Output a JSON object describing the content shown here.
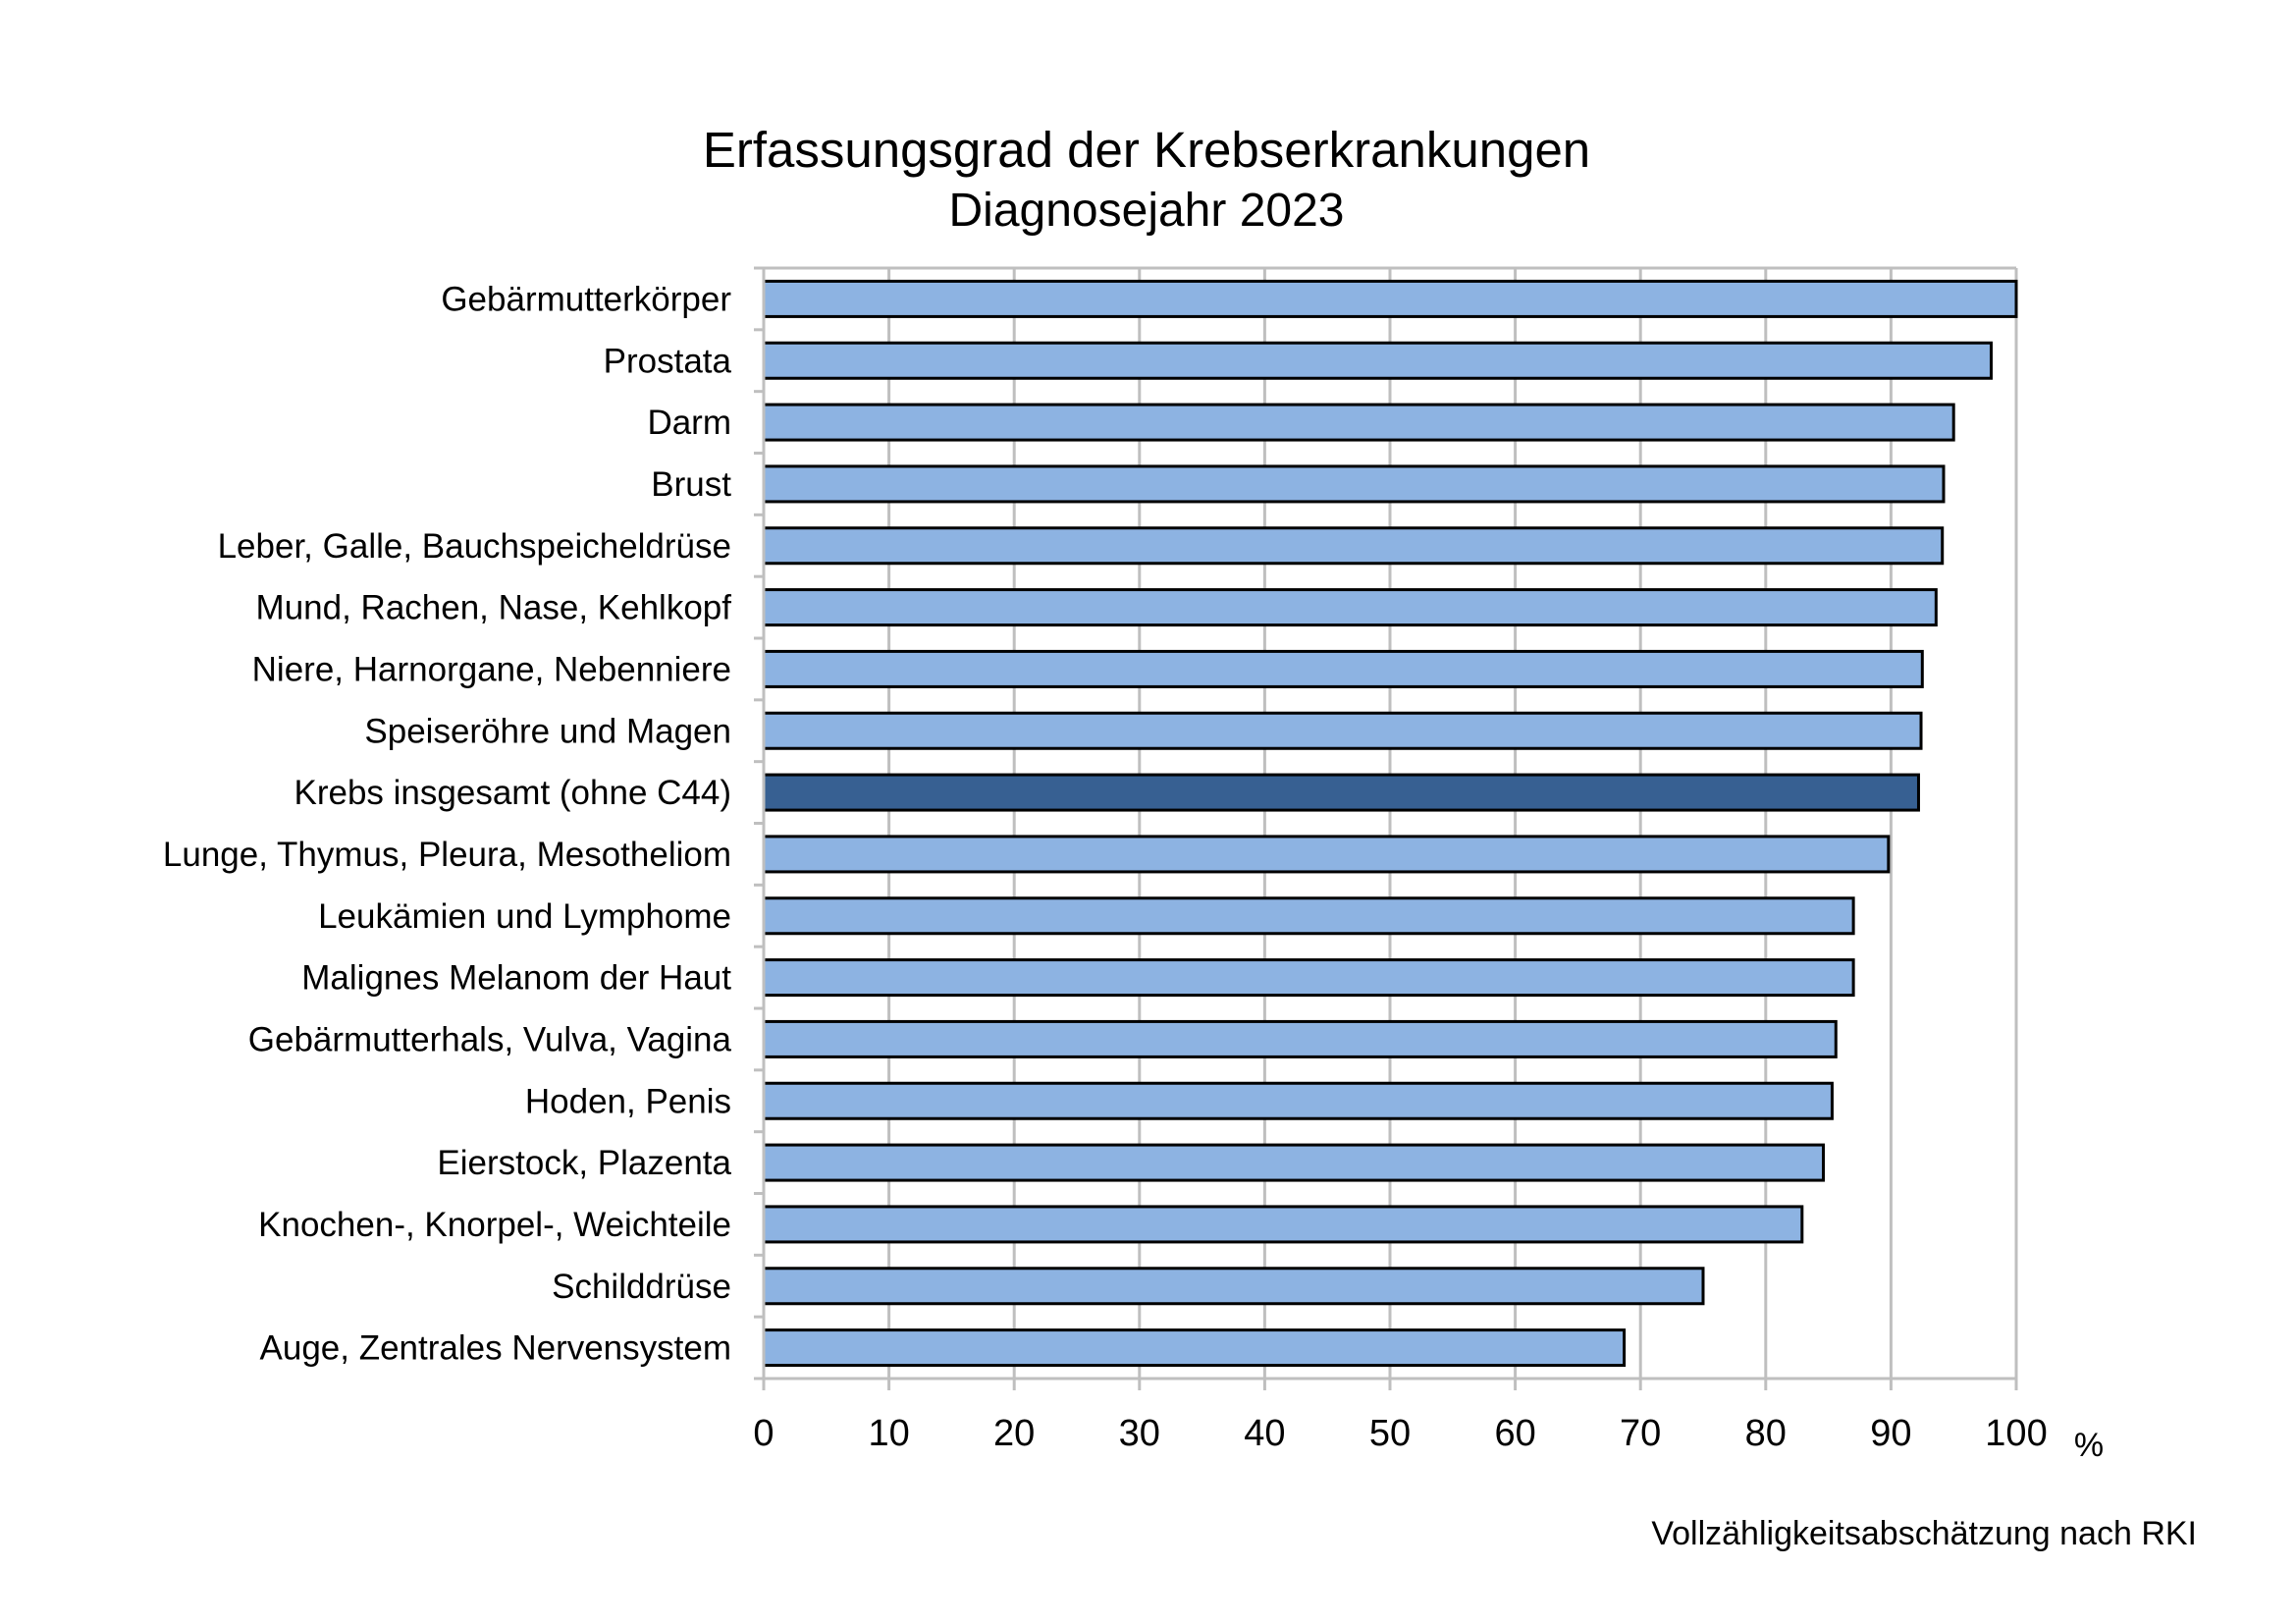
{
  "chart_data": {
    "type": "bar",
    "orientation": "horizontal",
    "title": "Erfassungsgrad der Krebserkrankungen",
    "subtitle": "Diagnosejahr 2023",
    "categories": [
      "Gebärmutterkörper",
      "Prostata",
      "Darm",
      "Brust",
      "Leber, Galle, Bauchspeicheldrüse",
      "Mund, Rachen, Nase, Kehlkopf",
      "Niere, Harnorgane, Nebenniere",
      "Speiseröhre und Magen",
      "Krebs insgesamt (ohne C44)",
      "Lunge, Thymus, Pleura, Mesotheliom",
      "Leukämien und Lymphome",
      "Malignes Melanom der Haut",
      "Gebärmutterhals, Vulva, Vagina",
      "Hoden, Penis",
      "Eierstock, Plazenta",
      "Knochen-, Knorpel-, Weichteile",
      "Schilddrüse",
      "Auge, Zentrales Nervensystem"
    ],
    "values": [
      100,
      98,
      95,
      94.2,
      94.1,
      93.6,
      92.5,
      92.4,
      92.2,
      89.8,
      87,
      87,
      85.6,
      85.3,
      84.6,
      82.9,
      75,
      68.7
    ],
    "highlight_index": 8,
    "xlim": [
      0,
      100
    ],
    "xticks": [
      "0",
      "10",
      "20",
      "30",
      "40",
      "50",
      "60",
      "70",
      "80",
      "90",
      "100"
    ],
    "xunit": "%",
    "grid": true,
    "colors": {
      "bar": "#8db3e2",
      "bar_highlight": "#376092",
      "bar_stroke": "#000000",
      "grid": "#bfbfbf"
    }
  },
  "source": "Vollzähligkeitsabschätzung nach RKI"
}
